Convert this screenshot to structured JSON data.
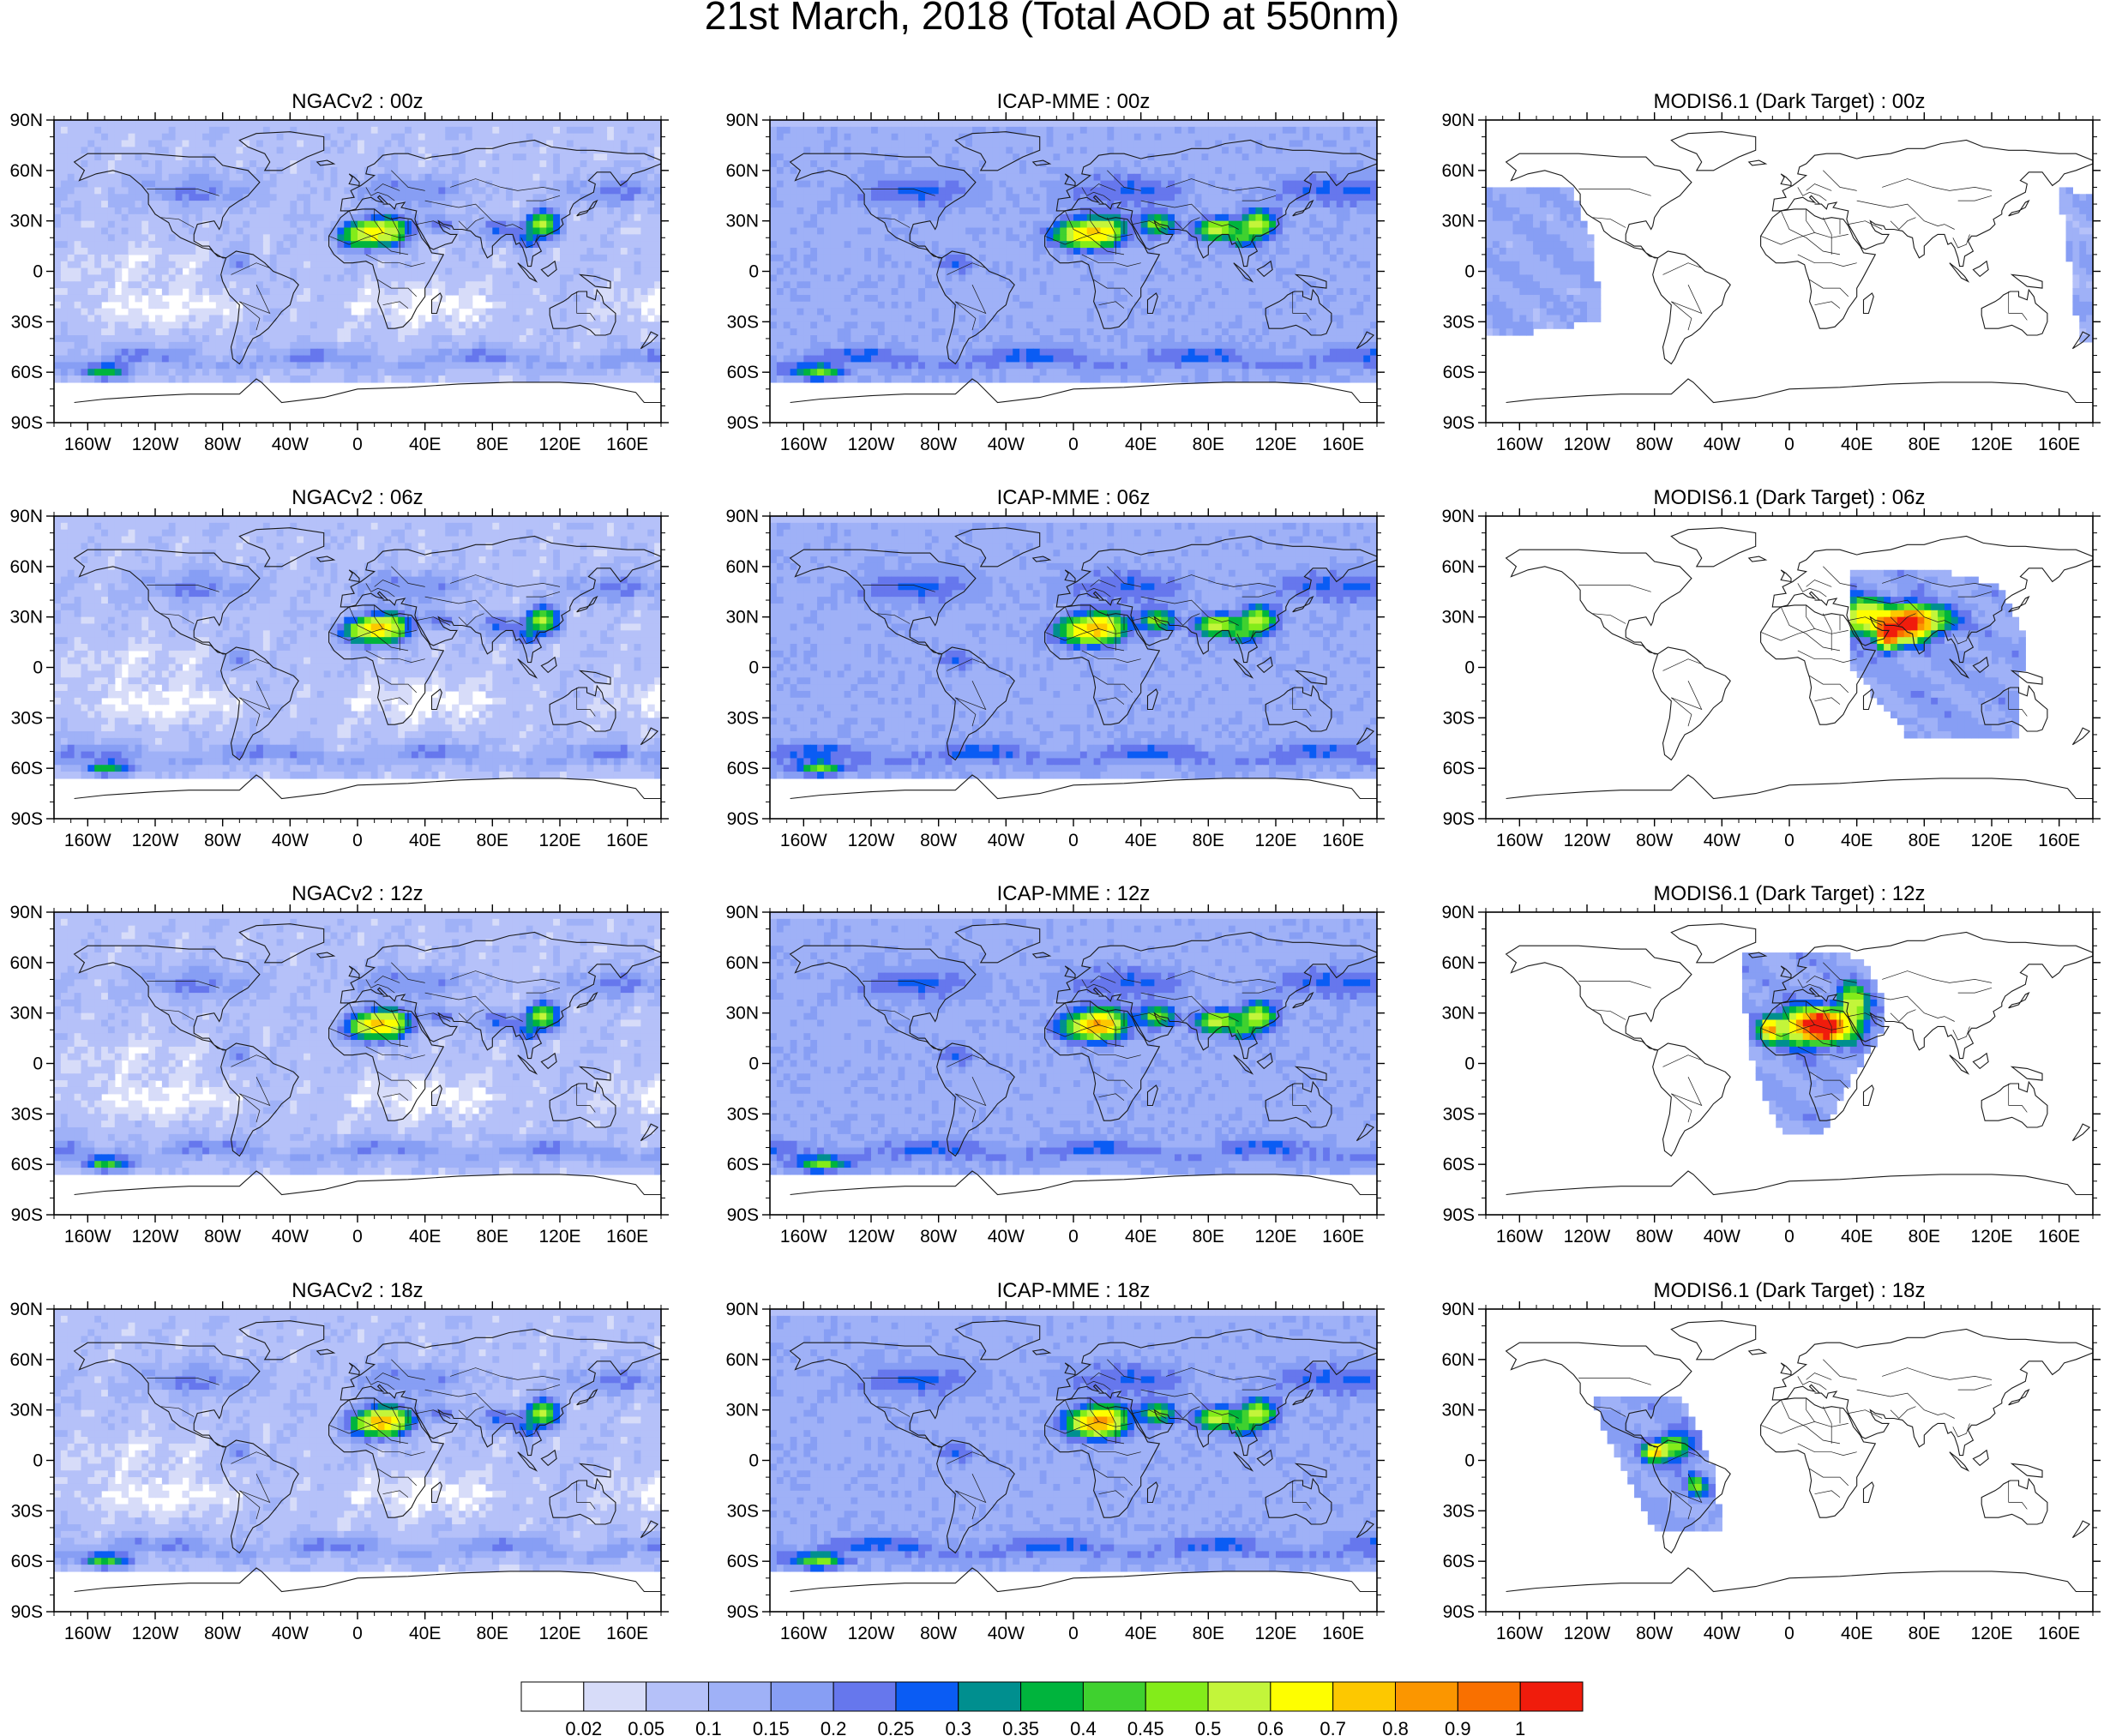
{
  "figure": {
    "title": "21st March, 2018 (Total AOD at 550nm)"
  },
  "axes": {
    "lat_ticks": [
      "90N",
      "60N",
      "30N",
      "0",
      "30S",
      "60S",
      "90S"
    ],
    "lon_ticks": [
      "160W",
      "120W",
      "80W",
      "40W",
      "0",
      "40E",
      "80E",
      "120E",
      "160E"
    ]
  },
  "rows": [
    "00z",
    "06z",
    "12z",
    "18z"
  ],
  "panels": [
    {
      "title": "NGACv2 : 00z",
      "product": "ngac",
      "hour": "00z"
    },
    {
      "title": "ICAP-MME : 00z",
      "product": "icap",
      "hour": "00z"
    },
    {
      "title": "MODIS6.1 (Dark Target) : 00z",
      "product": "modis",
      "hour": "00z",
      "swaths": [
        "east-pacific",
        "west-pacific-edge"
      ]
    },
    {
      "title": "NGACv2 : 06z",
      "product": "ngac",
      "hour": "06z"
    },
    {
      "title": "ICAP-MME : 06z",
      "product": "icap",
      "hour": "06z"
    },
    {
      "title": "MODIS6.1 (Dark Target) : 06z",
      "product": "modis",
      "hour": "06z",
      "swaths": [
        "asia"
      ]
    },
    {
      "title": "NGACv2 : 12z",
      "product": "ngac",
      "hour": "12z"
    },
    {
      "title": "ICAP-MME : 12z",
      "product": "icap",
      "hour": "12z"
    },
    {
      "title": "MODIS6.1 (Dark Target) : 12z",
      "product": "modis",
      "hour": "12z",
      "swaths": [
        "europe-africa"
      ]
    },
    {
      "title": "NGACv2 : 18z",
      "product": "ngac",
      "hour": "18z"
    },
    {
      "title": "ICAP-MME : 18z",
      "product": "icap",
      "hour": "18z"
    },
    {
      "title": "MODIS6.1 (Dark Target) : 18z",
      "product": "modis",
      "hour": "18z",
      "swaths": [
        "americas"
      ]
    }
  ],
  "colorbar": {
    "labels": [
      "0.02",
      "0.05",
      "0.1",
      "0.15",
      "0.2",
      "0.25",
      "0.3",
      "0.35",
      "0.4",
      "0.45",
      "0.5",
      "0.6",
      "0.7",
      "0.8",
      "0.9",
      "1"
    ],
    "colors": [
      "#ffffff",
      "#d7dcf9",
      "#b5c1f9",
      "#9fb1f7",
      "#879ef4",
      "#6677ed",
      "#0a5cf4",
      "#008f8f",
      "#00b43d",
      "#3fd12f",
      "#83ec1a",
      "#c3f53a",
      "#fefe00",
      "#fdc800",
      "#fb9600",
      "#f97000",
      "#f01c0c"
    ]
  },
  "colors": {
    "land_outline": "#1a1a1a",
    "frame": "#000000"
  }
}
